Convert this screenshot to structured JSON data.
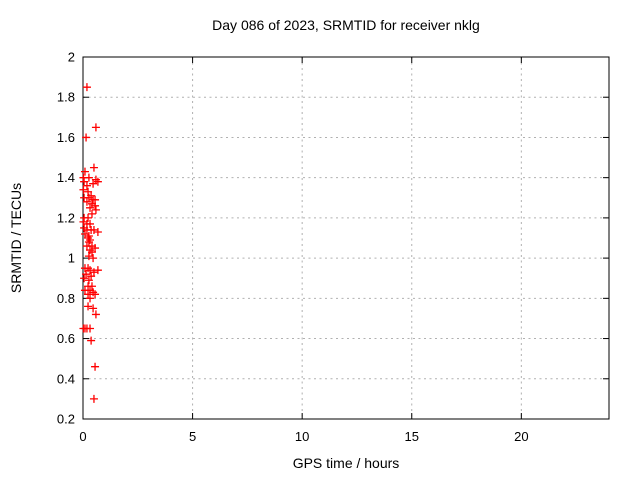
{
  "chart_data": {
    "type": "scatter",
    "title": "Day 086 of 2023, SRMTID for receiver nklg",
    "xlabel": "GPS time / hours",
    "ylabel": "SRMTID / TECUs",
    "xlim": [
      0,
      24
    ],
    "ylim": [
      0.2,
      2
    ],
    "x_ticks": [
      0,
      5,
      10,
      15,
      20
    ],
    "x_tick_labels": [
      "0",
      "5",
      "10",
      "15",
      "20"
    ],
    "y_ticks": [
      0.2,
      0.4,
      0.6,
      0.8,
      1,
      1.2,
      1.4,
      1.6,
      1.8,
      2
    ],
    "y_tick_labels": [
      "0.2",
      "0.4",
      "0.6",
      "0.8",
      "1",
      "1.2",
      "1.4",
      "1.6",
      "1.8",
      "2"
    ],
    "grid": true,
    "legend": "none",
    "marker": "plus",
    "marker_color": "#ff0000",
    "grid_color": "#b0b0b0",
    "border_color": "#000000",
    "series": [
      {
        "name": "SRMTID",
        "points": [
          [
            0.18,
            1.85
          ],
          [
            0.59,
            1.65
          ],
          [
            0.14,
            1.6
          ],
          [
            0.5,
            1.45
          ],
          [
            0.09,
            1.43
          ],
          [
            0.02,
            1.4
          ],
          [
            0.27,
            1.4
          ],
          [
            0.59,
            1.39
          ],
          [
            0.68,
            1.38
          ],
          [
            0.05,
            1.38
          ],
          [
            0.46,
            1.37
          ],
          [
            0.18,
            1.36
          ],
          [
            0.02,
            1.34
          ],
          [
            0.23,
            1.33
          ],
          [
            0.37,
            1.31
          ],
          [
            0.05,
            1.3
          ],
          [
            0.27,
            1.3
          ],
          [
            0.55,
            1.29
          ],
          [
            0.46,
            1.29
          ],
          [
            0.18,
            1.28
          ],
          [
            0.41,
            1.27
          ],
          [
            0.55,
            1.26
          ],
          [
            0.32,
            1.25
          ],
          [
            0.59,
            1.24
          ],
          [
            0.41,
            1.22
          ],
          [
            0.05,
            1.2
          ],
          [
            0.23,
            1.2
          ],
          [
            0.02,
            1.18
          ],
          [
            0.18,
            1.17
          ],
          [
            0.32,
            1.17
          ],
          [
            0.05,
            1.15
          ],
          [
            0.18,
            1.14
          ],
          [
            0.37,
            1.14
          ],
          [
            0.5,
            1.14
          ],
          [
            0.68,
            1.13
          ],
          [
            0.09,
            1.12
          ],
          [
            0.27,
            1.11
          ],
          [
            0.23,
            1.1
          ],
          [
            0.32,
            1.09
          ],
          [
            0.27,
            1.08
          ],
          [
            0.18,
            1.06
          ],
          [
            0.41,
            1.06
          ],
          [
            0.55,
            1.05
          ],
          [
            0.32,
            1.04
          ],
          [
            0.41,
            1.03
          ],
          [
            0.27,
            1.01
          ],
          [
            0.46,
            1.0
          ],
          [
            0.09,
            0.95
          ],
          [
            0.23,
            0.95
          ],
          [
            0.32,
            0.94
          ],
          [
            0.68,
            0.94
          ],
          [
            0.5,
            0.93
          ],
          [
            0.14,
            0.92
          ],
          [
            0.37,
            0.91
          ],
          [
            0.05,
            0.9
          ],
          [
            0.27,
            0.89
          ],
          [
            0.23,
            0.86
          ],
          [
            0.41,
            0.86
          ],
          [
            0.09,
            0.84
          ],
          [
            0.32,
            0.84
          ],
          [
            0.46,
            0.83
          ],
          [
            0.23,
            0.82
          ],
          [
            0.55,
            0.82
          ],
          [
            0.32,
            0.8
          ],
          [
            0.23,
            0.76
          ],
          [
            0.46,
            0.75
          ],
          [
            0.59,
            0.72
          ],
          [
            0.02,
            0.65
          ],
          [
            0.09,
            0.65
          ],
          [
            0.18,
            0.65
          ],
          [
            0.32,
            0.65
          ],
          [
            0.37,
            0.59
          ],
          [
            0.55,
            0.46
          ],
          [
            0.5,
            0.3
          ]
        ]
      }
    ]
  }
}
